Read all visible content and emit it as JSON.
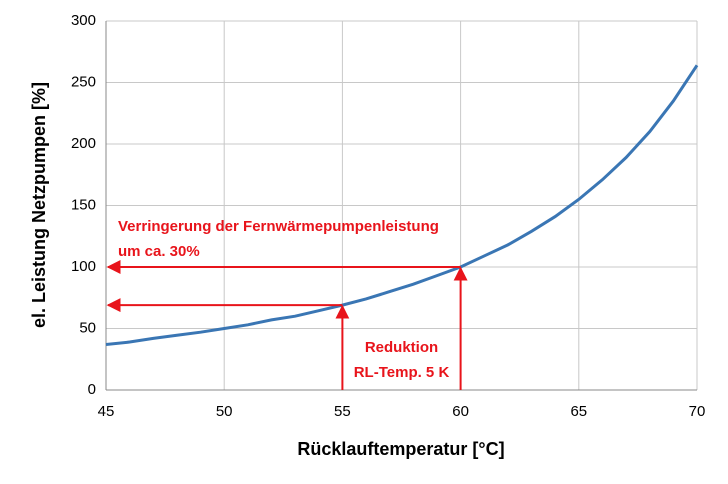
{
  "chart_data": {
    "type": "line",
    "x_label": "Rücklauftemperatur [°C]",
    "y_label": "el. Leistung Netzpumpen [%]",
    "x": [
      45,
      46,
      47,
      48,
      49,
      50,
      51,
      52,
      53,
      54,
      55,
      56,
      57,
      58,
      59,
      60,
      61,
      62,
      63,
      64,
      65,
      66,
      67,
      68,
      69,
      70
    ],
    "series": [
      {
        "color": "#3a76b4",
        "values": [
          37,
          39,
          42,
          44.5,
          47,
          50,
          53,
          57,
          60,
          64.5,
          69,
          74,
          80,
          86,
          93,
          100,
          109,
          118,
          129,
          141,
          155,
          171,
          189,
          210,
          235,
          264
        ]
      }
    ],
    "xlim": [
      45,
      70
    ],
    "xticks": [
      45,
      50,
      55,
      60,
      65,
      70
    ],
    "ylim": [
      0,
      300
    ],
    "yticks": [
      0,
      50,
      100,
      150,
      200,
      250,
      300
    ],
    "grid": true,
    "annotation_color": "#e8141b",
    "arrows": [
      {
        "x": 60,
        "y": 100
      },
      {
        "x": 55,
        "y": 69
      }
    ],
    "annotations": [
      {
        "lines": [
          "Verringerung der Fernwärmepumpenleistung",
          "um ca. 30%"
        ]
      },
      {
        "lines": [
          "Reduktion",
          "RL-Temp. 5 K"
        ]
      }
    ]
  }
}
